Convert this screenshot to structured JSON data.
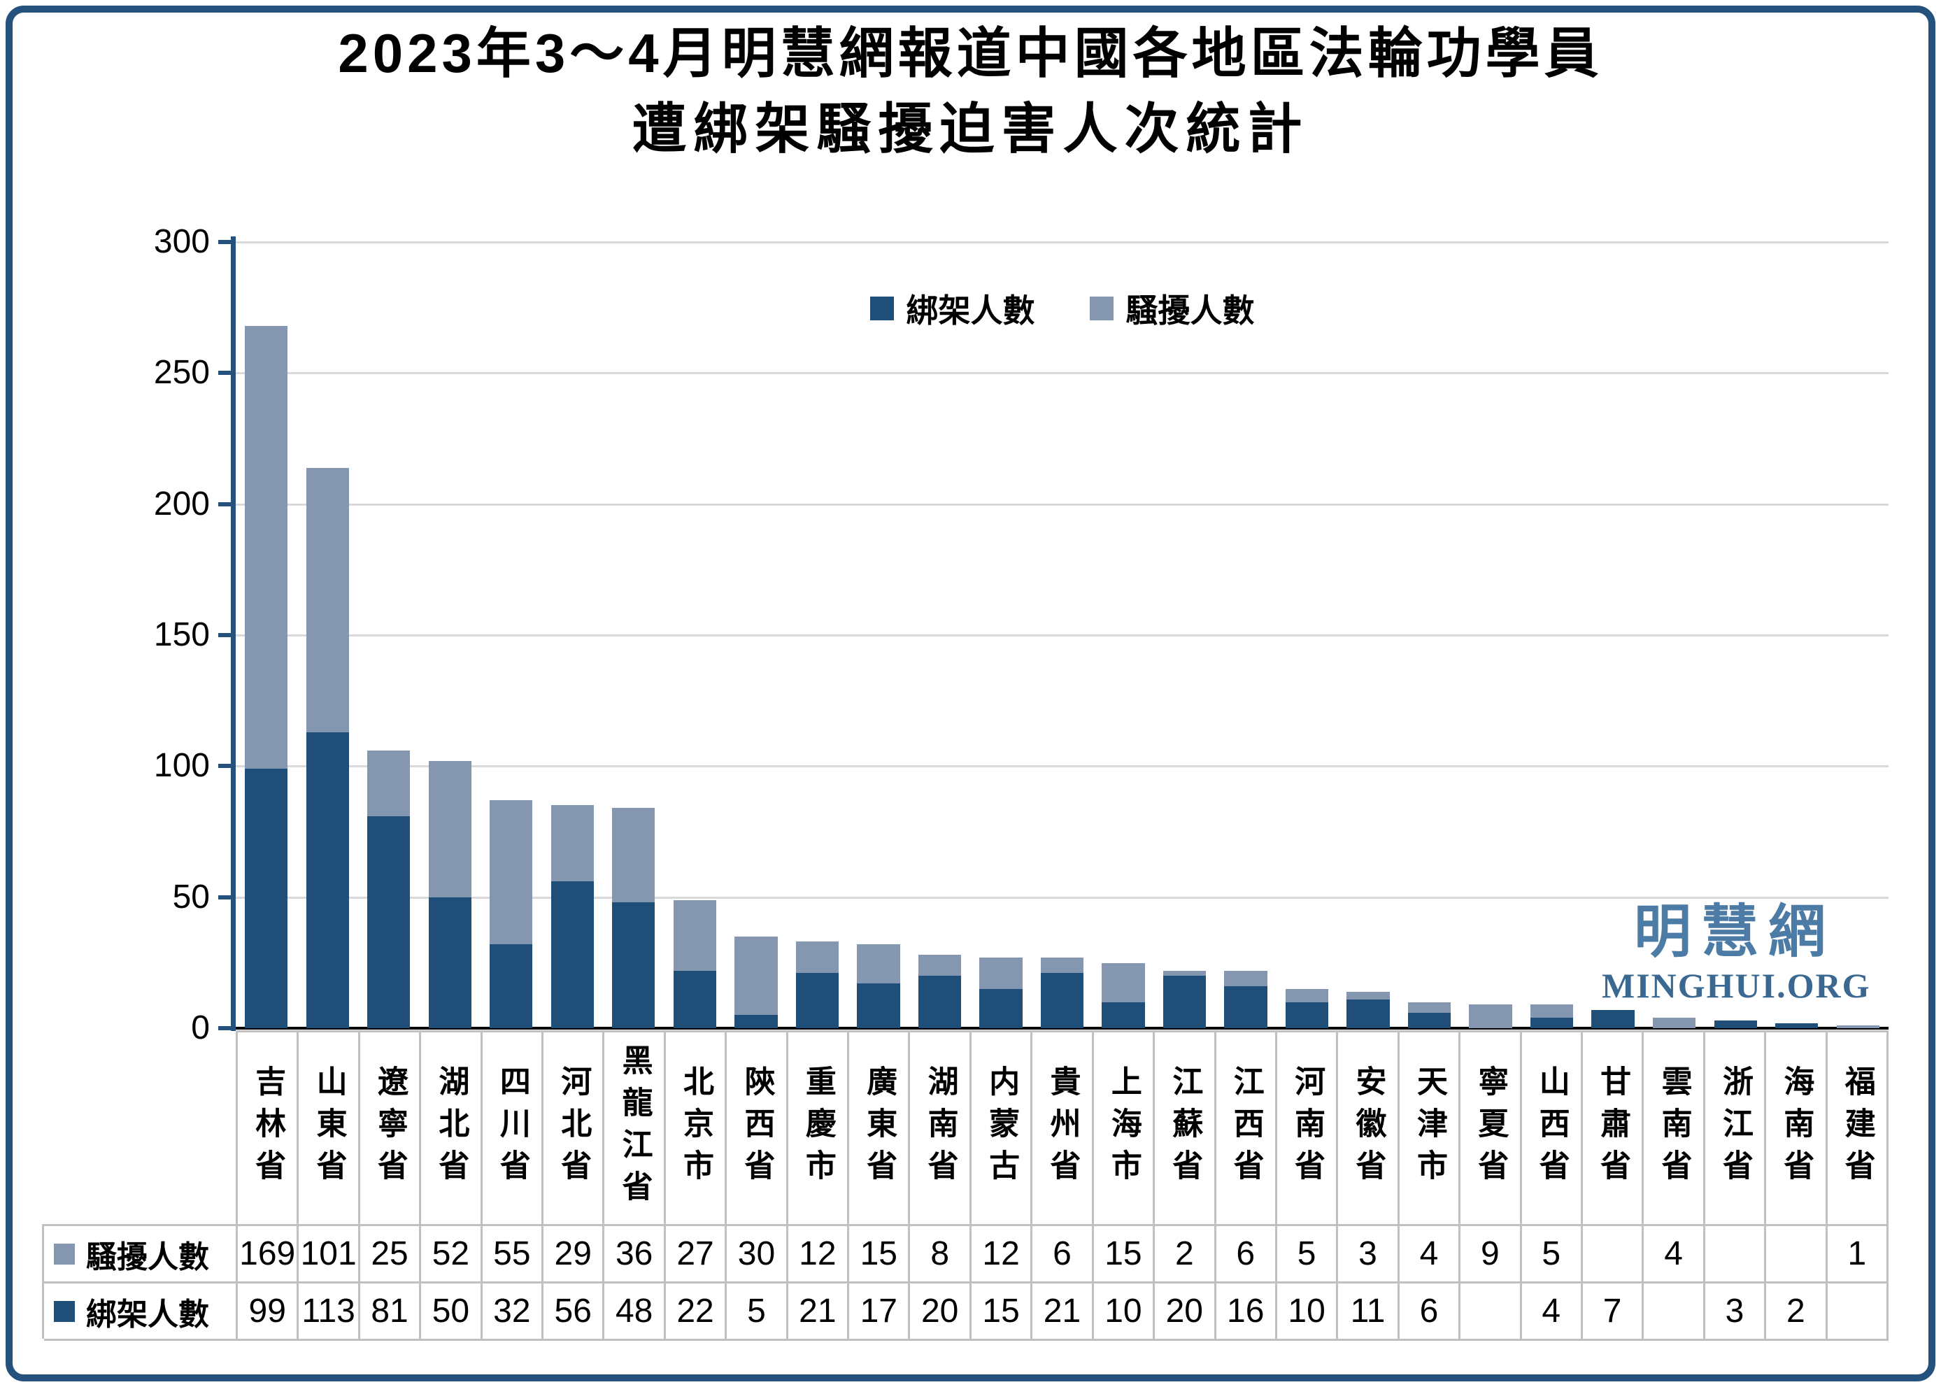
{
  "title": {
    "line1": "2023年3～4月明慧網報道中國各地區法輪功學員",
    "line2": "遭綁架騷擾迫害人次統計"
  },
  "watermark": {
    "cn": "明慧網",
    "en": "MINGHUI.ORG"
  },
  "colors": {
    "kidnap_dark_blue": "#1F4E79",
    "harass_gray_blue": "#8496B0",
    "axis_blue": "#24527C",
    "frame_blue": "#24527C",
    "gridline_gray": "#D9D9D9",
    "table_border_gray": "#C0C0C0",
    "baseline_black": "#000000",
    "watermark_cn_blue": "#4C7BA6",
    "watermark_en_blue": "#3A6890"
  },
  "chart_data": {
    "type": "bar",
    "stacked": true,
    "title": "2023年3～4月明慧網報道中國各地區法輪功學員遭綁架騷擾迫害人次統計",
    "xlabel": "",
    "ylabel": "",
    "ylim": [
      0,
      300
    ],
    "yticks": [
      300,
      250,
      200,
      150,
      100,
      50,
      0
    ],
    "grid": true,
    "legend_position": "top-center",
    "categories": [
      "吉林省",
      "山東省",
      "遼寧省",
      "湖北省",
      "四川省",
      "河北省",
      "黑龍江省",
      "北京市",
      "陝西省",
      "重慶市",
      "廣東省",
      "湖南省",
      "内蒙古",
      "貴州省",
      "上海市",
      "江蘇省",
      "江西省",
      "河南省",
      "安徽省",
      "天津市",
      "寧夏省",
      "山西省",
      "甘肅省",
      "雲南省",
      "浙江省",
      "海南省",
      "福建省"
    ],
    "series": [
      {
        "name": "綁架人數",
        "color": "#1F4E79",
        "values": [
          99,
          113,
          81,
          50,
          32,
          56,
          48,
          22,
          5,
          21,
          17,
          20,
          15,
          21,
          10,
          20,
          16,
          10,
          11,
          6,
          null,
          4,
          7,
          null,
          3,
          2,
          null
        ]
      },
      {
        "name": "騷擾人數",
        "color": "#8496B0",
        "values": [
          169,
          101,
          25,
          52,
          55,
          29,
          36,
          27,
          30,
          12,
          15,
          8,
          12,
          6,
          15,
          2,
          6,
          5,
          3,
          4,
          9,
          5,
          null,
          4,
          null,
          null,
          1
        ]
      }
    ]
  },
  "table": {
    "rows": [
      {
        "label": "騷擾人數",
        "swatch": "#8496B0",
        "values": [
          "169",
          "101",
          "25",
          "52",
          "55",
          "29",
          "36",
          "27",
          "30",
          "12",
          "15",
          "8",
          "12",
          "6",
          "15",
          "2",
          "6",
          "5",
          "3",
          "4",
          "9",
          "5",
          "",
          "4",
          "",
          "",
          "1"
        ]
      },
      {
        "label": "綁架人數",
        "swatch": "#1F4E79",
        "values": [
          "99",
          "113",
          "81",
          "50",
          "32",
          "56",
          "48",
          "22",
          "5",
          "21",
          "17",
          "20",
          "15",
          "21",
          "10",
          "20",
          "16",
          "10",
          "11",
          "6",
          "",
          "4",
          "7",
          "",
          "3",
          "2",
          ""
        ]
      }
    ]
  }
}
